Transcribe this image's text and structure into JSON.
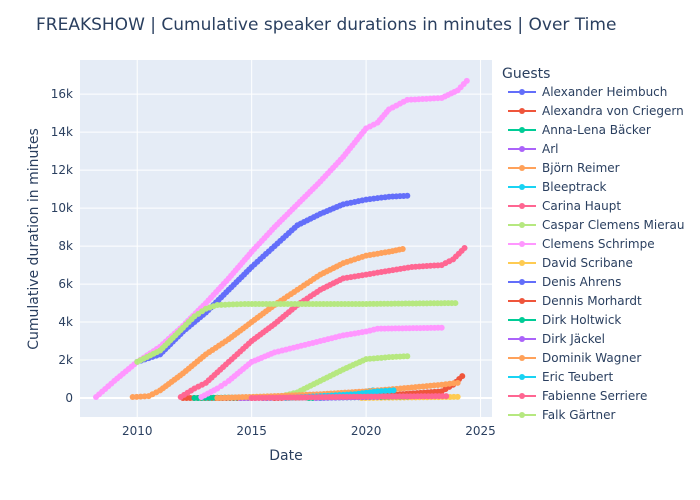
{
  "chart_data": {
    "type": "line",
    "title": "FREAKSHOW | Cumulative speaker durations in minutes | Over Time",
    "xlabel": "Date",
    "ylabel": "Cumulative duration in minutes",
    "xlim": [
      2007.5,
      2025.5
    ],
    "ylim": [
      -1000,
      17800
    ],
    "x_ticks": [
      2010,
      2015,
      2020,
      2025
    ],
    "x_tick_labels": [
      "2010",
      "2015",
      "2020",
      "2025"
    ],
    "y_ticks": [
      0,
      2000,
      4000,
      6000,
      8000,
      10000,
      12000,
      14000,
      16000
    ],
    "y_tick_labels": [
      "0",
      "2k",
      "4k",
      "6k",
      "8k",
      "10k",
      "12k",
      "14k",
      "16k"
    ],
    "grid": true,
    "legend_title": "Guests",
    "legend_position": "right",
    "series": [
      {
        "name": "Alexander Heimbuch",
        "color": "#636efa",
        "x": [
          2010.0,
          2011.0,
          2012.0,
          2013.0,
          2014.0,
          2015.0,
          2016.0,
          2017.0,
          2018.0,
          2019.0,
          2020.0,
          2021.0,
          2021.8
        ],
        "y": [
          1900,
          2300,
          3500,
          4500,
          5700,
          6900,
          8000,
          9100,
          9700,
          10200,
          10450,
          10600,
          10650
        ]
      },
      {
        "name": "Alexandra von Criegern",
        "color": "#ef553b",
        "x": [
          2012.0,
          2015.0,
          2018.0,
          2021.0,
          2023.3,
          2023.8,
          2024.2
        ],
        "y": [
          0,
          0,
          50,
          150,
          350,
          700,
          1150
        ]
      },
      {
        "name": "Anna-Lena Bäcker",
        "color": "#00cc96",
        "x": [
          2012.5,
          2014.0,
          2016.0,
          2018.0,
          2020.0,
          2021.2
        ],
        "y": [
          0,
          20,
          40,
          60,
          80,
          100
        ]
      },
      {
        "name": "Arl",
        "color": "#ab63fa",
        "x": [
          2014.5,
          2016.0,
          2018.0,
          2020.0,
          2021.0
        ],
        "y": [
          0,
          20,
          40,
          60,
          80
        ]
      },
      {
        "name": "Björn Reimer",
        "color": "#ffa15a",
        "x": [
          2009.8,
          2010.5,
          2011.0,
          2012.0,
          2013.0,
          2014.0,
          2015.0,
          2016.0,
          2017.0,
          2018.0,
          2019.0,
          2020.0,
          2021.0,
          2021.6
        ],
        "y": [
          50,
          100,
          400,
          1300,
          2300,
          3100,
          4000,
          4900,
          5700,
          6500,
          7100,
          7500,
          7700,
          7850
        ]
      },
      {
        "name": "Bleeptrack",
        "color": "#19d3f3",
        "x": [
          2018.0,
          2019.0,
          2019.8,
          2020.3
        ],
        "y": [
          0,
          100,
          300,
          400
        ]
      },
      {
        "name": "Carina Haupt",
        "color": "#ff6692",
        "x": [
          2011.9,
          2012.5,
          2013.0,
          2014.0,
          2015.0,
          2016.0,
          2017.0,
          2018.0,
          2019.0,
          2020.0,
          2021.0,
          2022.0,
          2023.3,
          2023.8,
          2024.3
        ],
        "y": [
          50,
          500,
          800,
          1900,
          3000,
          3900,
          4900,
          5700,
          6300,
          6500,
          6700,
          6900,
          7000,
          7300,
          7900
        ]
      },
      {
        "name": "Caspar Clemens Mierau",
        "color": "#b6e880",
        "x": [
          2016.0,
          2017.0,
          2018.0,
          2019.0,
          2020.0,
          2021.0,
          2021.8
        ],
        "y": [
          0,
          300,
          900,
          1500,
          2050,
          2150,
          2200
        ]
      },
      {
        "name": "Clemens Schrimpe",
        "color": "#ff97ff",
        "x": [
          2008.2,
          2009.0,
          2010.0,
          2011.0,
          2012.0,
          2013.0,
          2014.0,
          2015.0,
          2016.0,
          2017.0,
          2018.0,
          2019.0,
          2020.0,
          2020.5,
          2021.0,
          2021.8,
          2023.3,
          2024.0,
          2024.4
        ],
        "y": [
          50,
          900,
          1900,
          2700,
          3800,
          5000,
          6300,
          7700,
          9000,
          10200,
          11400,
          12700,
          14200,
          14500,
          15200,
          15700,
          15800,
          16200,
          16700
        ]
      },
      {
        "name": "David Scribane",
        "color": "#fecb52",
        "x": [
          2019.8,
          2021.0,
          2022.5,
          2024.0
        ],
        "y": [
          0,
          20,
          40,
          60
        ]
      },
      {
        "name": "Denis Ahrens",
        "color": "#636efa",
        "x": [
          2015.5,
          2017.0,
          2018.5,
          2020.0,
          2021.0
        ],
        "y": [
          0,
          30,
          60,
          80,
          100
        ]
      },
      {
        "name": "Dennis Morhardt",
        "color": "#ef553b",
        "x": [
          2016.0,
          2018.0,
          2020.0,
          2021.5
        ],
        "y": [
          0,
          50,
          100,
          150
        ]
      },
      {
        "name": "Dirk Holtwick",
        "color": "#00cc96",
        "x": [
          2017.5,
          2019.0,
          2020.5,
          2021.8
        ],
        "y": [
          0,
          30,
          60,
          80
        ]
      },
      {
        "name": "Dirk Jäckel",
        "color": "#ab63fa",
        "x": [
          2017.8,
          2019.0,
          2020.5
        ],
        "y": [
          0,
          30,
          60
        ]
      },
      {
        "name": "Dominik Wagner",
        "color": "#ffa15a",
        "x": [
          2013.5,
          2016.0,
          2018.0,
          2020.0,
          2021.5,
          2023.3,
          2024.0
        ],
        "y": [
          0,
          100,
          200,
          350,
          500,
          700,
          800
        ]
      },
      {
        "name": "Eric Teubert",
        "color": "#19d3f3",
        "x": [
          2016.5,
          2018.0,
          2019.5,
          2020.5,
          2021.2
        ],
        "y": [
          0,
          100,
          200,
          350,
          400
        ]
      },
      {
        "name": "Fabienne Serriere",
        "color": "#ff6692",
        "x": [
          2015.0,
          2017.0,
          2019.0,
          2021.0,
          2023.5
        ],
        "y": [
          0,
          30,
          60,
          80,
          100
        ]
      },
      {
        "name": "Falk Gärtner",
        "color": "#b6e880",
        "x": [
          2010.0,
          2011.0,
          2012.0,
          2012.5,
          2013.0,
          2013.5,
          2014.7,
          2019.7,
          2023.9
        ],
        "y": [
          1900,
          2500,
          3700,
          4300,
          4700,
          4900,
          4950,
          4950,
          5000
        ]
      }
    ],
    "extra_series": [
      {
        "color": "#ff97ff",
        "x": [
          2012.8,
          2013.5,
          2014.0,
          2015.0,
          2016.0,
          2017.0,
          2018.0,
          2019.0,
          2020.0,
          2020.5,
          2023.3
        ],
        "y": [
          50,
          500,
          900,
          1900,
          2400,
          2700,
          3000,
          3300,
          3500,
          3650,
          3700
        ]
      }
    ]
  }
}
